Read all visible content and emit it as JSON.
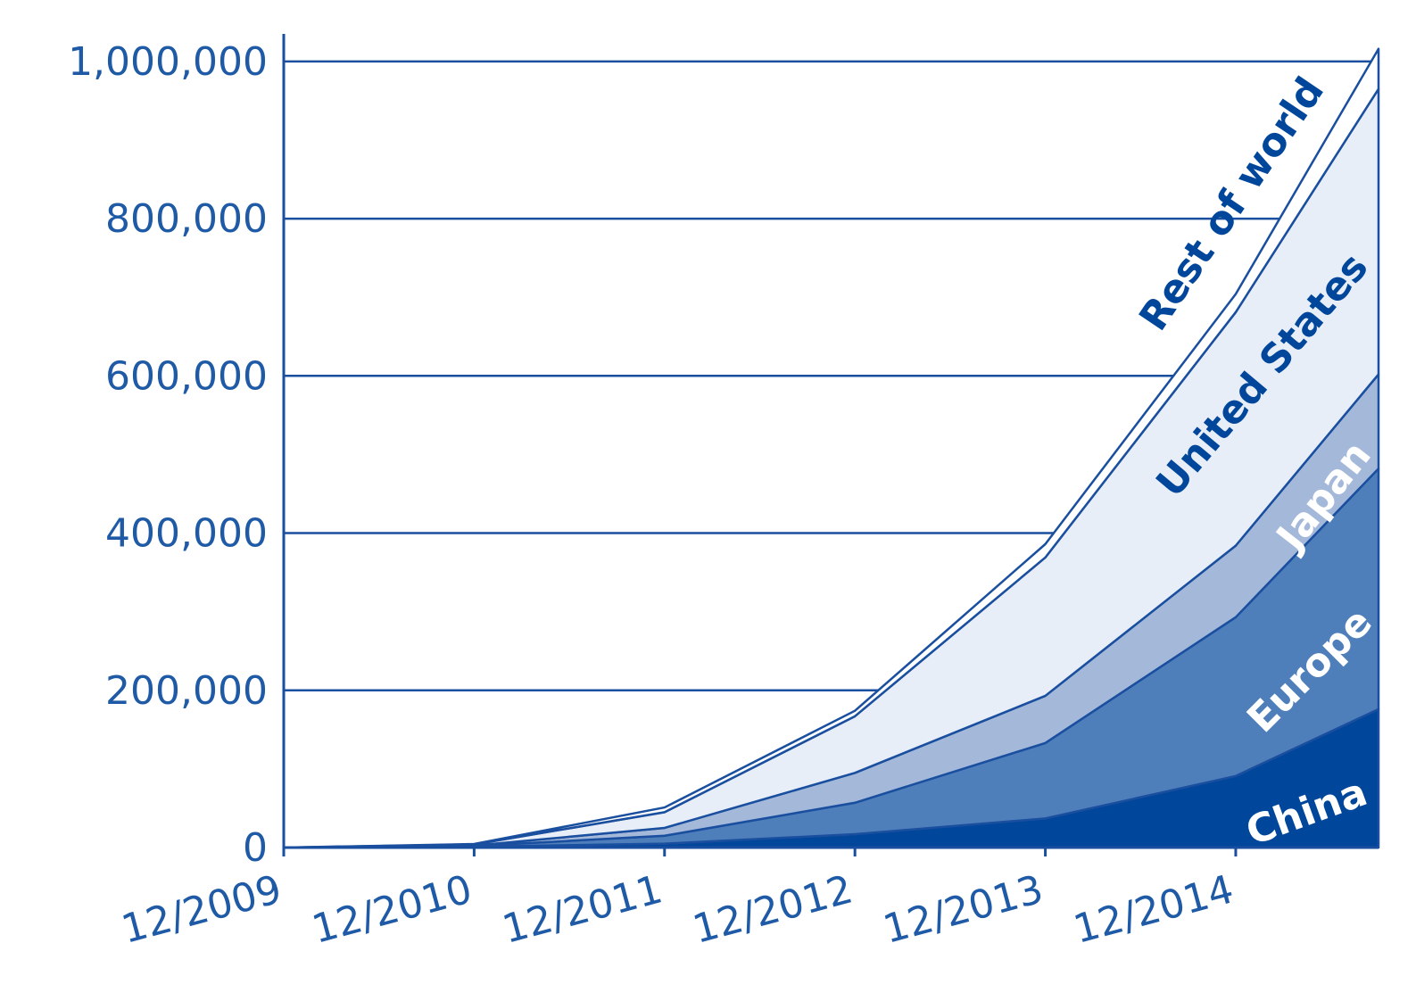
{
  "chart_data": {
    "type": "stacked-area",
    "x": [
      2009.92,
      2010.92,
      2011.92,
      2012.92,
      2013.92,
      2014.92,
      2015.67
    ],
    "xlim": [
      2009.92,
      2015.67
    ],
    "xticks": [
      {
        "value": 2009.92,
        "label": "12/2009"
      },
      {
        "value": 2010.92,
        "label": "12/2010"
      },
      {
        "value": 2011.92,
        "label": "12/2011"
      },
      {
        "value": 2012.92,
        "label": "12/2012"
      },
      {
        "value": 2013.92,
        "label": "12/2013"
      },
      {
        "value": 2014.92,
        "label": "12/2014"
      }
    ],
    "ylim": [
      0,
      1035000
    ],
    "yticks": [
      0,
      {
        "value": 200000,
        "label": "200,000"
      },
      {
        "value": 400000,
        "label": "400,000"
      },
      {
        "value": 600000,
        "label": "600,000"
      },
      {
        "value": 800000,
        "label": "800,000"
      },
      {
        "value": 1000000,
        "label": "1,000,000"
      }
    ],
    "grid": true,
    "series": [
      {
        "name": "China",
        "color": "#00469a",
        "values": [
          0,
          1000,
          5000,
          17000,
          37000,
          91000,
          176000
        ]
      },
      {
        "name": "Europe",
        "color": "#4f7fba",
        "values": [
          0,
          1000,
          10000,
          40000,
          96000,
          202000,
          306000
        ]
      },
      {
        "name": "Japan",
        "color": "#a4b9da",
        "values": [
          0,
          500,
          10000,
          38000,
          60000,
          91000,
          120000
        ]
      },
      {
        "name": "United States",
        "color": "#e8eef8",
        "values": [
          0,
          1500,
          20000,
          72000,
          176000,
          297000,
          363000
        ]
      },
      {
        "name": "Rest of world",
        "color": "#ffffff",
        "values": [
          0,
          500,
          6000,
          7000,
          17000,
          23000,
          51000
        ]
      }
    ]
  }
}
